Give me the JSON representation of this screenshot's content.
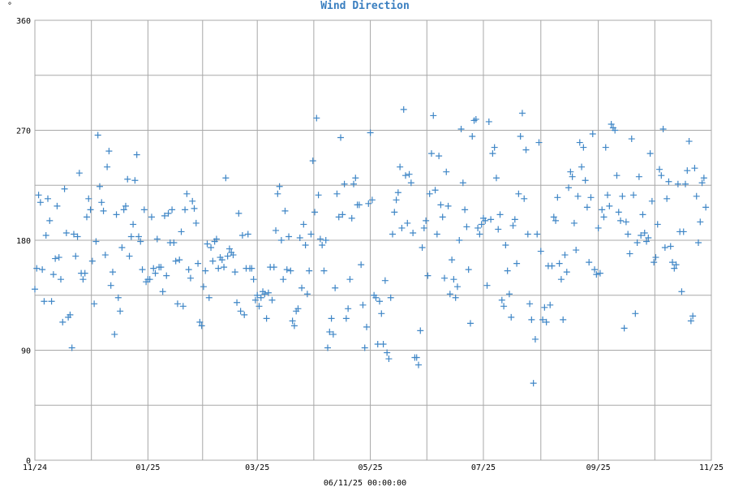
{
  "chart_data": {
    "type": "scatter",
    "title": "Wind Direction",
    "yunit": "°",
    "footer": "06/11/25 00:00:00",
    "series_color": "#3f86c6",
    "grid_color": "#a8a8a8",
    "title_color": "#3a7fc0",
    "grid": true,
    "ylim": [
      0,
      360
    ],
    "yticks": [
      "0",
      "90",
      "180",
      "270",
      "360"
    ],
    "xlim": [
      0,
      365
    ],
    "xticks": [
      {
        "pos": 0,
        "label": "11/24"
      },
      {
        "pos": 61,
        "label": "01/25"
      },
      {
        "pos": 120,
        "label": "03/25"
      },
      {
        "pos": 181,
        "label": "05/25"
      },
      {
        "pos": 242,
        "label": "07/25"
      },
      {
        "pos": 304,
        "label": "09/25"
      },
      {
        "pos": 365,
        "label": "11/25"
      }
    ],
    "points": [
      [
        0,
        140
      ],
      [
        1,
        157
      ],
      [
        2,
        217
      ],
      [
        3,
        211
      ],
      [
        4,
        156
      ],
      [
        5,
        130
      ],
      [
        6,
        184
      ],
      [
        7,
        214
      ],
      [
        8,
        196
      ],
      [
        9,
        130
      ],
      [
        10,
        152
      ],
      [
        11,
        165
      ],
      [
        12,
        208
      ],
      [
        13,
        166
      ],
      [
        14,
        148
      ],
      [
        15,
        113
      ],
      [
        16,
        222
      ],
      [
        17,
        186
      ],
      [
        18,
        117
      ],
      [
        19,
        119
      ],
      [
        20,
        92
      ],
      [
        21,
        185
      ],
      [
        22,
        167
      ],
      [
        23,
        183
      ],
      [
        24,
        235
      ],
      [
        25,
        153
      ],
      [
        26,
        148
      ],
      [
        27,
        153
      ],
      [
        28,
        199
      ],
      [
        29,
        214
      ],
      [
        30,
        205
      ],
      [
        31,
        163
      ],
      [
        32,
        128
      ],
      [
        33,
        179
      ],
      [
        34,
        266
      ],
      [
        35,
        224
      ],
      [
        36,
        211
      ],
      [
        37,
        204
      ],
      [
        38,
        168
      ],
      [
        39,
        240
      ],
      [
        40,
        253
      ],
      [
        41,
        143
      ],
      [
        42,
        154
      ],
      [
        43,
        103
      ],
      [
        44,
        201
      ],
      [
        45,
        133
      ],
      [
        46,
        122
      ],
      [
        47,
        174
      ],
      [
        48,
        205
      ],
      [
        49,
        208
      ],
      [
        50,
        230
      ],
      [
        51,
        167
      ],
      [
        52,
        183
      ],
      [
        53,
        193
      ],
      [
        54,
        229
      ],
      [
        55,
        250
      ],
      [
        56,
        183
      ],
      [
        57,
        179
      ],
      [
        58,
        156
      ],
      [
        59,
        205
      ],
      [
        60,
        146
      ],
      [
        61,
        148
      ],
      [
        62,
        148
      ],
      [
        63,
        199
      ],
      [
        64,
        157
      ],
      [
        65,
        153
      ],
      [
        66,
        181
      ],
      [
        67,
        158
      ],
      [
        68,
        158
      ],
      [
        69,
        138
      ],
      [
        70,
        200
      ],
      [
        71,
        151
      ],
      [
        72,
        202
      ],
      [
        73,
        178
      ],
      [
        74,
        205
      ],
      [
        75,
        178
      ],
      [
        76,
        163
      ],
      [
        77,
        128
      ],
      [
        78,
        164
      ],
      [
        79,
        187
      ],
      [
        80,
        126
      ],
      [
        81,
        205
      ],
      [
        82,
        218
      ],
      [
        83,
        156
      ],
      [
        84,
        149
      ],
      [
        85,
        212
      ],
      [
        86,
        206
      ],
      [
        87,
        194
      ],
      [
        88,
        161
      ],
      [
        89,
        113
      ],
      [
        90,
        110
      ],
      [
        91,
        142
      ],
      [
        92,
        155
      ],
      [
        93,
        177
      ],
      [
        94,
        133
      ],
      [
        95,
        174
      ],
      [
        96,
        163
      ],
      [
        97,
        179
      ],
      [
        98,
        181
      ],
      [
        99,
        157
      ],
      [
        100,
        166
      ],
      [
        101,
        164
      ],
      [
        102,
        158
      ],
      [
        103,
        231
      ],
      [
        104,
        167
      ],
      [
        105,
        173
      ],
      [
        106,
        170
      ],
      [
        107,
        168
      ],
      [
        108,
        154
      ],
      [
        109,
        129
      ],
      [
        110,
        202
      ],
      [
        111,
        122
      ],
      [
        112,
        184
      ],
      [
        113,
        119
      ],
      [
        114,
        157
      ],
      [
        115,
        185
      ],
      [
        116,
        157
      ],
      [
        117,
        157
      ],
      [
        118,
        148
      ],
      [
        119,
        131
      ],
      [
        120,
        135
      ],
      [
        121,
        126
      ],
      [
        122,
        133
      ],
      [
        123,
        138
      ],
      [
        124,
        136
      ],
      [
        125,
        116
      ],
      [
        126,
        137
      ],
      [
        127,
        158
      ],
      [
        128,
        131
      ],
      [
        129,
        158
      ],
      [
        130,
        188
      ],
      [
        131,
        218
      ],
      [
        132,
        224
      ],
      [
        133,
        180
      ],
      [
        134,
        148
      ],
      [
        135,
        204
      ],
      [
        136,
        156
      ],
      [
        137,
        183
      ],
      [
        138,
        155
      ],
      [
        139,
        114
      ],
      [
        140,
        110
      ],
      [
        141,
        122
      ],
      [
        142,
        124
      ],
      [
        143,
        182
      ],
      [
        144,
        141
      ],
      [
        145,
        193
      ],
      [
        146,
        176
      ],
      [
        147,
        136
      ],
      [
        148,
        155
      ],
      [
        149,
        185
      ],
      [
        150,
        245
      ],
      [
        151,
        203
      ],
      [
        152,
        280
      ],
      [
        153,
        217
      ],
      [
        154,
        181
      ],
      [
        155,
        176
      ],
      [
        156,
        155
      ],
      [
        157,
        180
      ],
      [
        158,
        92
      ],
      [
        159,
        105
      ],
      [
        160,
        116
      ],
      [
        161,
        103
      ],
      [
        162,
        141
      ],
      [
        163,
        218
      ],
      [
        164,
        199
      ],
      [
        165,
        264
      ],
      [
        166,
        201
      ],
      [
        167,
        226
      ],
      [
        168,
        116
      ],
      [
        169,
        124
      ],
      [
        170,
        148
      ],
      [
        171,
        198
      ],
      [
        172,
        226
      ],
      [
        173,
        231
      ],
      [
        174,
        209
      ],
      [
        175,
        209
      ],
      [
        176,
        160
      ],
      [
        177,
        127
      ],
      [
        178,
        92
      ],
      [
        179,
        109
      ],
      [
        180,
        210
      ],
      [
        181,
        268
      ],
      [
        182,
        213
      ],
      [
        183,
        135
      ],
      [
        184,
        133
      ],
      [
        185,
        95
      ],
      [
        186,
        130
      ],
      [
        187,
        120
      ],
      [
        188,
        95
      ],
      [
        189,
        147
      ],
      [
        190,
        88
      ],
      [
        191,
        83
      ],
      [
        192,
        133
      ],
      [
        193,
        185
      ],
      [
        194,
        203
      ],
      [
        195,
        213
      ],
      [
        196,
        219
      ],
      [
        197,
        240
      ],
      [
        198,
        190
      ],
      [
        199,
        287
      ],
      [
        200,
        233
      ],
      [
        201,
        194
      ],
      [
        202,
        234
      ],
      [
        203,
        227
      ],
      [
        204,
        186
      ],
      [
        205,
        84
      ],
      [
        206,
        84
      ],
      [
        207,
        78
      ],
      [
        208,
        106
      ],
      [
        209,
        174
      ],
      [
        210,
        190
      ],
      [
        211,
        196
      ],
      [
        212,
        151
      ],
      [
        213,
        218
      ],
      [
        214,
        251
      ],
      [
        215,
        282
      ],
      [
        216,
        221
      ],
      [
        217,
        185
      ],
      [
        218,
        249
      ],
      [
        219,
        209
      ],
      [
        220,
        199
      ],
      [
        221,
        149
      ],
      [
        222,
        236
      ],
      [
        223,
        208
      ],
      [
        224,
        136
      ],
      [
        225,
        164
      ],
      [
        226,
        148
      ],
      [
        227,
        133
      ],
      [
        228,
        142
      ],
      [
        229,
        180
      ],
      [
        230,
        271
      ],
      [
        231,
        227
      ],
      [
        232,
        205
      ],
      [
        233,
        191
      ],
      [
        234,
        156
      ],
      [
        235,
        112
      ],
      [
        236,
        265
      ],
      [
        237,
        278
      ],
      [
        238,
        279
      ],
      [
        239,
        190
      ],
      [
        240,
        185
      ],
      [
        241,
        193
      ],
      [
        242,
        198
      ],
      [
        243,
        196
      ],
      [
        244,
        143
      ],
      [
        245,
        277
      ],
      [
        246,
        197
      ],
      [
        247,
        251
      ],
      [
        248,
        256
      ],
      [
        249,
        231
      ],
      [
        250,
        189
      ],
      [
        251,
        201
      ],
      [
        252,
        131
      ],
      [
        253,
        126
      ],
      [
        254,
        176
      ],
      [
        255,
        155
      ],
      [
        256,
        136
      ],
      [
        257,
        117
      ],
      [
        258,
        192
      ],
      [
        259,
        197
      ],
      [
        260,
        161
      ],
      [
        261,
        218
      ],
      [
        262,
        265
      ],
      [
        263,
        284
      ],
      [
        264,
        214
      ],
      [
        265,
        254
      ],
      [
        266,
        185
      ],
      [
        267,
        128
      ],
      [
        268,
        115
      ],
      [
        269,
        63
      ],
      [
        270,
        99
      ],
      [
        271,
        185
      ],
      [
        272,
        260
      ],
      [
        273,
        171
      ],
      [
        274,
        115
      ],
      [
        275,
        125
      ],
      [
        276,
        113
      ],
      [
        277,
        159
      ],
      [
        278,
        127
      ],
      [
        279,
        159
      ],
      [
        280,
        199
      ],
      [
        281,
        196
      ],
      [
        282,
        215
      ],
      [
        283,
        161
      ],
      [
        284,
        148
      ],
      [
        285,
        115
      ],
      [
        286,
        168
      ],
      [
        287,
        154
      ],
      [
        288,
        223
      ],
      [
        289,
        236
      ],
      [
        290,
        232
      ],
      [
        291,
        194
      ],
      [
        292,
        172
      ],
      [
        293,
        216
      ],
      [
        294,
        260
      ],
      [
        295,
        240
      ],
      [
        296,
        256
      ],
      [
        297,
        229
      ],
      [
        298,
        207
      ],
      [
        299,
        162
      ],
      [
        300,
        215
      ],
      [
        301,
        267
      ],
      [
        302,
        156
      ],
      [
        303,
        152
      ],
      [
        304,
        190
      ],
      [
        305,
        153
      ],
      [
        306,
        205
      ],
      [
        307,
        199
      ],
      [
        308,
        256
      ],
      [
        309,
        217
      ],
      [
        310,
        208
      ],
      [
        311,
        275
      ],
      [
        312,
        272
      ],
      [
        313,
        270
      ],
      [
        314,
        233
      ],
      [
        315,
        203
      ],
      [
        316,
        196
      ],
      [
        317,
        216
      ],
      [
        318,
        108
      ],
      [
        319,
        195
      ],
      [
        320,
        185
      ],
      [
        321,
        169
      ],
      [
        322,
        263
      ],
      [
        323,
        217
      ],
      [
        324,
        120
      ],
      [
        325,
        178
      ],
      [
        326,
        232
      ],
      [
        327,
        184
      ],
      [
        328,
        201
      ],
      [
        329,
        186
      ],
      [
        330,
        179
      ],
      [
        331,
        182
      ],
      [
        332,
        251
      ],
      [
        333,
        212
      ],
      [
        334,
        162
      ],
      [
        335,
        166
      ],
      [
        336,
        193
      ],
      [
        337,
        238
      ],
      [
        338,
        233
      ],
      [
        339,
        271
      ],
      [
        340,
        174
      ],
      [
        341,
        214
      ],
      [
        342,
        228
      ],
      [
        343,
        175
      ],
      [
        344,
        162
      ],
      [
        345,
        157
      ],
      [
        346,
        160
      ],
      [
        347,
        226
      ],
      [
        348,
        187
      ],
      [
        349,
        138
      ],
      [
        350,
        187
      ],
      [
        351,
        226
      ],
      [
        352,
        237
      ],
      [
        353,
        261
      ],
      [
        354,
        114
      ],
      [
        355,
        118
      ],
      [
        356,
        239
      ],
      [
        357,
        216
      ],
      [
        358,
        178
      ],
      [
        359,
        195
      ],
      [
        360,
        227
      ],
      [
        361,
        231
      ],
      [
        362,
        207
      ]
    ]
  }
}
